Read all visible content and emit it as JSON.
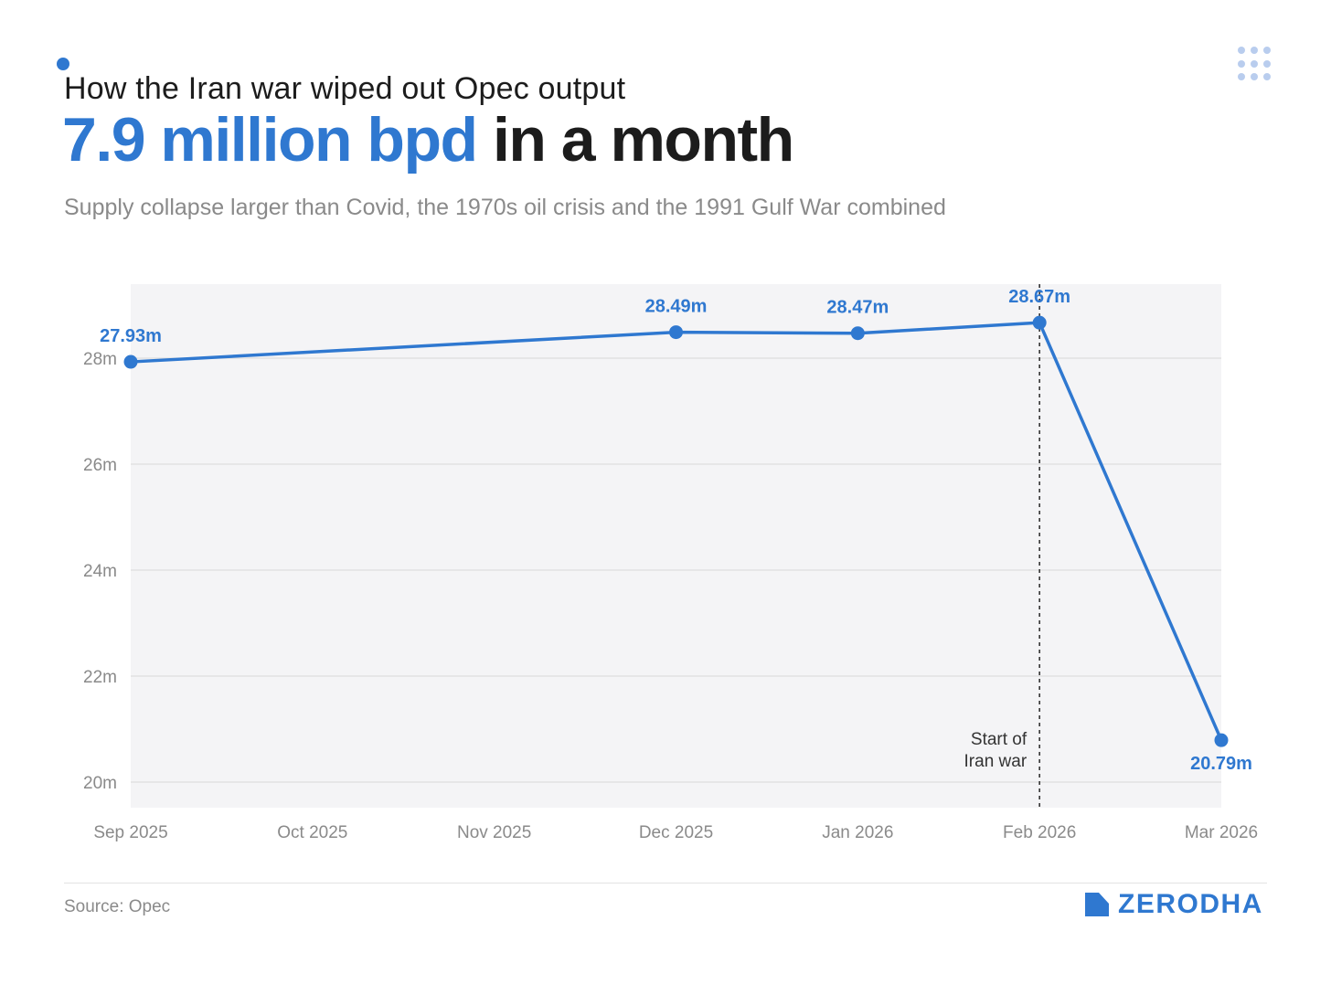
{
  "header": {
    "kicker": "How the Iran war wiped out Opec output",
    "headline_highlight": "7.9 million bpd",
    "headline_rest": " in a month",
    "subtitle": "Supply collapse larger than Covid, the 1970s oil crisis and the 1991 Gulf War combined"
  },
  "footer": {
    "source": "Source: Opec",
    "brand": "ZERODHA"
  },
  "colors": {
    "accent": "#2f78d0",
    "plot_bg": "#f4f4f6",
    "grid": "#dedede",
    "axis_text": "#8a8a8a"
  },
  "chart_data": {
    "type": "line",
    "title": "7.9 million bpd in a month",
    "xlabel": "",
    "ylabel": "",
    "months": [
      "Sep 2025",
      "Oct 2025",
      "Nov 2025",
      "Dec 2025",
      "Jan 2026",
      "Feb 2026",
      "Mar 2026"
    ],
    "y_ticks": [
      20,
      22,
      24,
      26,
      28
    ],
    "y_tick_labels": [
      "20m",
      "22m",
      "24m",
      "26m",
      "28m"
    ],
    "ylim": [
      19.5,
      29.4
    ],
    "series": [
      {
        "name": "Opec output",
        "points": [
          {
            "x": "Sep 2025",
            "value": 27.93,
            "label": "27.93m"
          },
          {
            "x": "Dec 2025",
            "value": 28.49,
            "label": "28.49m"
          },
          {
            "x": "Jan 2026",
            "value": 28.47,
            "label": "28.47m"
          },
          {
            "x": "Feb 2026",
            "value": 28.67,
            "label": "28.67m"
          },
          {
            "x": "Mar 2026",
            "value": 20.79,
            "label": "20.79m"
          }
        ]
      }
    ],
    "annotation": {
      "x": "Feb 2026",
      "lines": [
        "Start of",
        "Iran war"
      ]
    }
  }
}
